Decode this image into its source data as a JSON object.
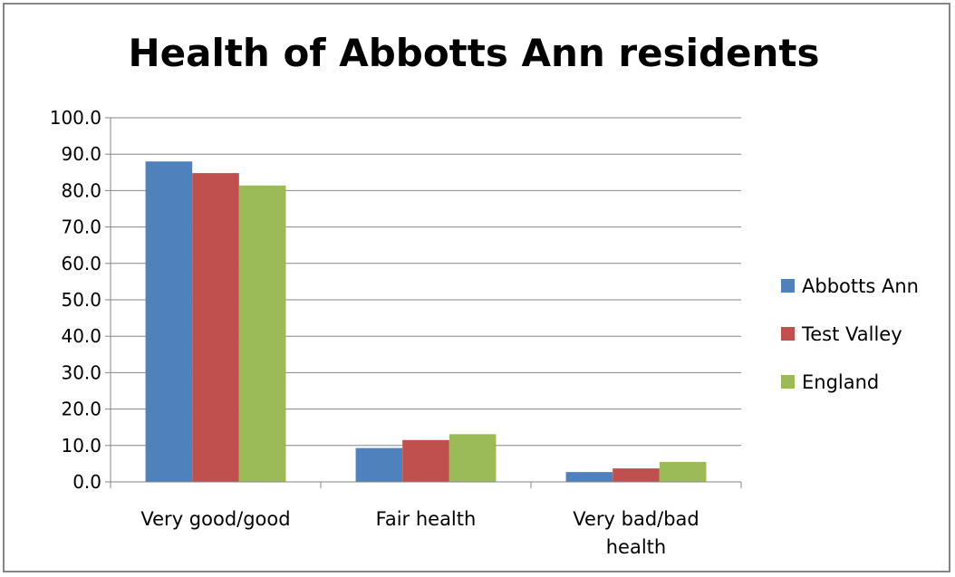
{
  "chart_data": {
    "type": "bar",
    "title": "Health of Abbotts Ann residents",
    "categories": [
      "Very good/good",
      "Fair health",
      "Very bad/bad health"
    ],
    "category_lines": [
      [
        "Very good/good"
      ],
      [
        "Fair health"
      ],
      [
        "Very bad/bad",
        "health"
      ]
    ],
    "series": [
      {
        "name": "Abbotts Ann",
        "color": "#4F81BD",
        "values": [
          88.0,
          9.3,
          2.7
        ]
      },
      {
        "name": "Test Valley",
        "color": "#C0504D",
        "values": [
          84.8,
          11.5,
          3.7
        ]
      },
      {
        "name": "England",
        "color": "#9BBB59",
        "values": [
          81.4,
          13.1,
          5.5
        ]
      }
    ],
    "ylim": [
      0,
      100
    ],
    "yticks": [
      "0.0",
      "10.0",
      "20.0",
      "30.0",
      "40.0",
      "50.0",
      "60.0",
      "70.0",
      "80.0",
      "90.0",
      "100.0"
    ],
    "grid": true,
    "legend_position": "right",
    "xlabel": "",
    "ylabel": ""
  }
}
